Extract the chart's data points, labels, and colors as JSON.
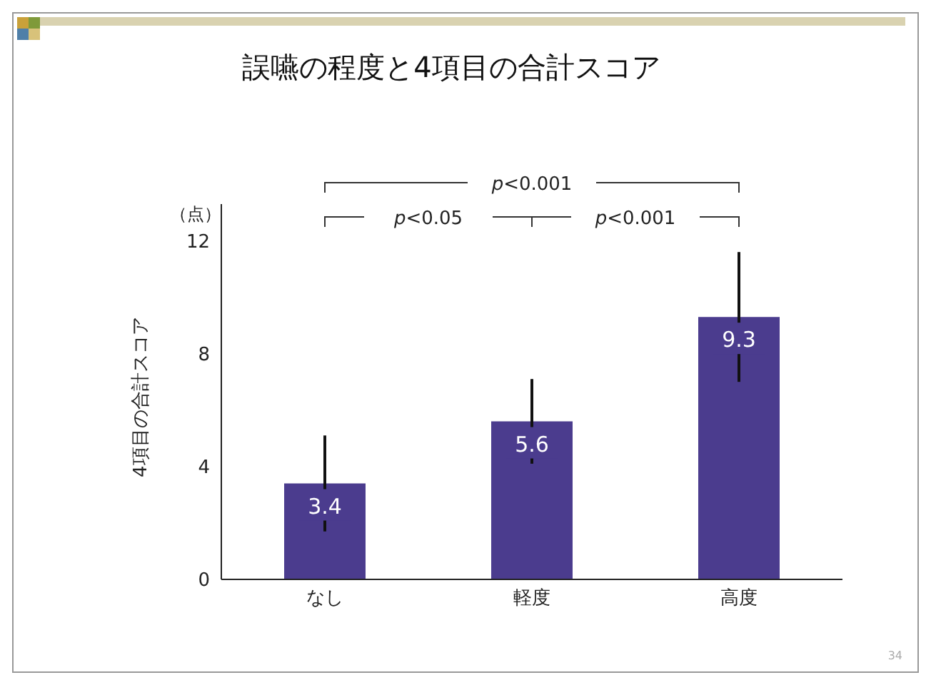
{
  "chart_data": {
    "type": "bar",
    "title": "誤嚥の程度と4項目の合計スコア",
    "ylabel": "4項目の合計スコア",
    "categories": [
      "なし",
      "軽度",
      "高度"
    ],
    "values": [
      3.4,
      5.6,
      9.3
    ],
    "errors": [
      1.7,
      1.5,
      2.3
    ],
    "color": "#4b3c8e",
    "ylim": [
      0,
      13.3
    ],
    "yticks": [
      0,
      4,
      8,
      12
    ],
    "data_labels": true,
    "grid": false,
    "legend": false,
    "annotations": [
      "（点）",
      "p<0.001",
      "p<0.05",
      "p<0.001",
      "34"
    ]
  }
}
